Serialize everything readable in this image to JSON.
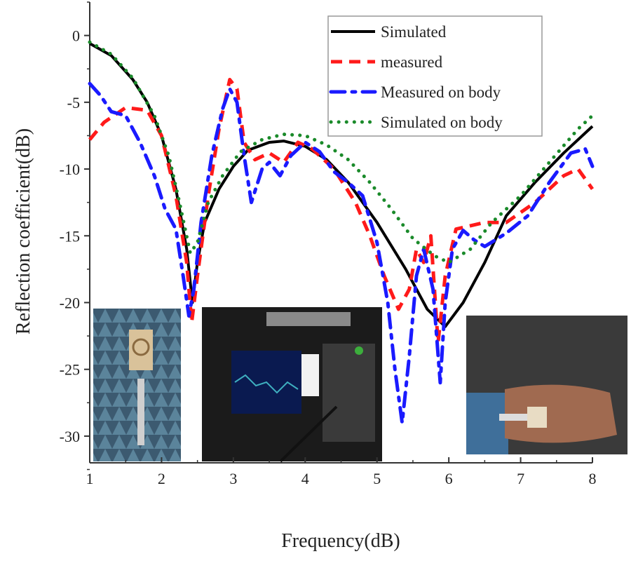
{
  "chart_data": {
    "type": "line",
    "xlabel": "Frequency(dB)",
    "ylabel": "Reflection coefficient(dB)",
    "xlim": [
      1,
      8
    ],
    "ylim": [
      -32,
      2.5
    ],
    "xticks": [
      1,
      2,
      3,
      4,
      5,
      6,
      7,
      8
    ],
    "yticks": [
      0,
      -5,
      -10,
      -15,
      -20,
      -25,
      -30
    ],
    "grid": false,
    "legend_position": "top-right",
    "series": [
      {
        "name": "Simulated",
        "color": "#000000",
        "style": "solid",
        "x": [
          1,
          1.3,
          1.6,
          1.8,
          2,
          2.2,
          2.35,
          2.43,
          2.5,
          2.6,
          2.8,
          3,
          3.2,
          3.5,
          3.7,
          4,
          4.3,
          4.6,
          5,
          5.4,
          5.7,
          5.95,
          6.2,
          6.5,
          6.8,
          7.2,
          7.6,
          8
        ],
        "y": [
          -0.6,
          -1.5,
          -3.3,
          -5,
          -7.5,
          -11.5,
          -16,
          -20,
          -17,
          -14,
          -11.5,
          -9.8,
          -8.6,
          -8,
          -7.9,
          -8.3,
          -9.3,
          -11,
          -14,
          -17.5,
          -20.5,
          -21.8,
          -20,
          -17,
          -13.5,
          -11,
          -8.8,
          -6.8
        ]
      },
      {
        "name": "measured",
        "color": "#ff1a1a",
        "style": "dash",
        "x": [
          1,
          1.2,
          1.5,
          1.8,
          2,
          2.2,
          2.35,
          2.42,
          2.5,
          2.65,
          2.8,
          2.95,
          3.05,
          3.15,
          3.3,
          3.5,
          3.7,
          3.9,
          4.1,
          4.4,
          4.7,
          4.9,
          5.1,
          5.3,
          5.45,
          5.55,
          5.65,
          5.75,
          5.85,
          5.95,
          6.1,
          6.5,
          6.8,
          7.2,
          7.6,
          7.8,
          8
        ],
        "y": [
          -7.8,
          -6.5,
          -5.4,
          -5.6,
          -7.5,
          -12,
          -17,
          -21.5,
          -18,
          -12,
          -7,
          -3.3,
          -4,
          -8,
          -9.3,
          -8.8,
          -9.5,
          -8,
          -8.5,
          -10,
          -12.5,
          -15,
          -18,
          -20.5,
          -19,
          -16,
          -17,
          -15,
          -23,
          -18,
          -14.5,
          -14,
          -14,
          -12.5,
          -10.5,
          -10,
          -11.5
        ]
      },
      {
        "name": "Measured on body",
        "color": "#1a1aff",
        "style": "dashdot",
        "x": [
          1,
          1.15,
          1.3,
          1.5,
          1.7,
          1.9,
          2.05,
          2.2,
          2.3,
          2.38,
          2.45,
          2.55,
          2.7,
          2.85,
          2.95,
          3.05,
          3.15,
          3.25,
          3.4,
          3.5,
          3.65,
          3.8,
          4,
          4.2,
          4.4,
          4.6,
          4.8,
          5,
          5.15,
          5.25,
          5.35,
          5.45,
          5.55,
          5.65,
          5.78,
          5.88,
          5.95,
          6.05,
          6.2,
          6.35,
          6.5,
          6.8,
          7.1,
          7.4,
          7.7,
          7.9,
          8
        ],
        "y": [
          -3.6,
          -4.5,
          -5.7,
          -6,
          -8,
          -10.5,
          -13,
          -14.5,
          -18,
          -21,
          -19,
          -14,
          -9,
          -5.5,
          -4,
          -5,
          -9,
          -12.5,
          -10,
          -9.5,
          -10.5,
          -9,
          -8,
          -8.7,
          -10.2,
          -11,
          -12,
          -15.5,
          -20,
          -25,
          -29,
          -24,
          -18,
          -16,
          -19,
          -26,
          -20,
          -16,
          -14.6,
          -15.3,
          -15.8,
          -14.8,
          -13.5,
          -11,
          -8.8,
          -8.5,
          -9.8
        ]
      },
      {
        "name": "Simulated on body",
        "color": "#1a8a2a",
        "style": "dot",
        "x": [
          1,
          1.3,
          1.6,
          1.9,
          2.1,
          2.25,
          2.4,
          2.5,
          2.65,
          2.85,
          3.1,
          3.4,
          3.7,
          4,
          4.3,
          4.6,
          4.9,
          5.2,
          5.5,
          5.8,
          6,
          6.3,
          6.6,
          7,
          7.4,
          7.8,
          8
        ],
        "y": [
          -0.5,
          -1.4,
          -3.2,
          -6,
          -9,
          -12.5,
          -16.3,
          -15.5,
          -12.5,
          -10.5,
          -8.7,
          -7.8,
          -7.4,
          -7.5,
          -8.2,
          -9.3,
          -11,
          -13,
          -15.2,
          -16.5,
          -17,
          -16,
          -14,
          -12,
          -9.5,
          -7,
          -6
        ]
      }
    ]
  }
}
